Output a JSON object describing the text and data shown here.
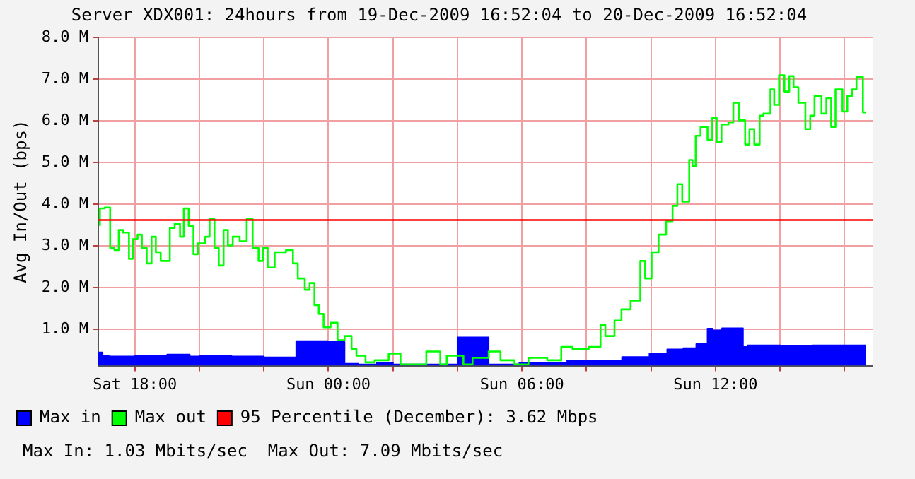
{
  "chart_data": {
    "type": "step",
    "title": "Server XDX001: 24hours from 19-Dec-2009 16:52:04 to 20-Dec-2009 16:52:04",
    "ylabel": "Avg In/Out (bps)",
    "xlim": [
      "2009-12-19T16:52",
      "2009-12-20T16:52"
    ],
    "xticks": [
      {
        "value": "2009-12-19T18:00",
        "label": "Sat 18:00"
      },
      {
        "value": "2009-12-19T20:00",
        "label": null
      },
      {
        "value": "2009-12-19T22:00",
        "label": null
      },
      {
        "value": "2009-12-20T00:00",
        "label": "Sun 00:00"
      },
      {
        "value": "2009-12-20T02:00",
        "label": null
      },
      {
        "value": "2009-12-20T04:00",
        "label": null
      },
      {
        "value": "2009-12-20T06:00",
        "label": "Sun 06:00"
      },
      {
        "value": "2009-12-20T08:00",
        "label": null
      },
      {
        "value": "2009-12-20T10:00",
        "label": null
      },
      {
        "value": "2009-12-20T12:00",
        "label": "Sun 12:00"
      },
      {
        "value": "2009-12-20T14:00",
        "label": null
      },
      {
        "value": "2009-12-20T16:00",
        "label": null
      }
    ],
    "ylim": [
      0.13,
      8.0
    ],
    "yticks": [
      {
        "value": 1,
        "label": "1.0 M"
      },
      {
        "value": 2,
        "label": "2.0 M"
      },
      {
        "value": 3,
        "label": "3.0 M"
      },
      {
        "value": 4,
        "label": "4.0 M"
      },
      {
        "value": 5,
        "label": "5.0 M"
      },
      {
        "value": 6,
        "label": "6.0 M"
      },
      {
        "value": 7,
        "label": "7.0 M"
      },
      {
        "value": 8,
        "label": "8.0 M"
      }
    ],
    "grid": true,
    "legend": "bottom",
    "marker": "none",
    "annotations": [
      "Max In: 1.03 Mbits/sec  Max Out: 7.09 Mbits/sec"
    ],
    "series": [
      {
        "name": "Max in",
        "type": "area",
        "color": "#0000ff",
        "x": [
          "2009-12-19T16:52",
          "2009-12-19T17:00",
          "2009-12-19T17:12",
          "2009-12-19T18:00",
          "2009-12-19T19:00",
          "2009-12-19T19:42",
          "2009-12-19T20:00",
          "2009-12-19T21:00",
          "2009-12-19T22:00",
          "2009-12-19T23:00",
          "2009-12-19T23:59",
          "2009-12-20T00:30",
          "2009-12-20T00:56",
          "2009-12-20T01:30",
          "2009-12-20T02:00",
          "2009-12-20T03:00",
          "2009-12-20T04:00",
          "2009-12-20T04:58",
          "2009-12-20T05:55",
          "2009-12-20T07:24",
          "2009-12-20T09:06",
          "2009-12-20T09:57",
          "2009-12-20T10:30",
          "2009-12-20T11:00",
          "2009-12-20T11:24",
          "2009-12-20T11:45",
          "2009-12-20T11:54",
          "2009-12-20T12:12",
          "2009-12-20T12:51",
          "2009-12-20T13:00",
          "2009-12-20T14:00",
          "2009-12-20T15:00",
          "2009-12-20T16:00",
          "2009-12-20T16:40"
        ],
        "values": [
          0.36,
          0.45,
          0.36,
          0.35,
          0.36,
          0.4,
          0.35,
          0.36,
          0.35,
          0.33,
          0.72,
          0.7,
          0.18,
          0.16,
          0.2,
          0.16,
          0.16,
          0.81,
          0.16,
          0.21,
          0.26,
          0.34,
          0.42,
          0.52,
          0.55,
          0.65,
          1.02,
          0.98,
          1.03,
          0.58,
          0.62,
          0.6,
          0.62,
          0.62
        ]
      },
      {
        "name": "Max out",
        "color": "#00ff00",
        "x": [
          "2009-12-19T16:55",
          "2009-12-19T17:04",
          "2009-12-19T17:14",
          "2009-12-19T17:22",
          "2009-12-19T17:30",
          "2009-12-19T17:38",
          "2009-12-19T17:49",
          "2009-12-19T17:56",
          "2009-12-19T18:05",
          "2009-12-19T18:13",
          "2009-12-19T18:22",
          "2009-12-19T18:31",
          "2009-12-19T18:39",
          "2009-12-19T18:48",
          "2009-12-19T19:05",
          "2009-12-19T19:14",
          "2009-12-19T19:24",
          "2009-12-19T19:31",
          "2009-12-19T19:40",
          "2009-12-19T19:49",
          "2009-12-19T19:57",
          "2009-12-19T20:11",
          "2009-12-19T20:19",
          "2009-12-19T20:28",
          "2009-12-19T20:36",
          "2009-12-19T20:45",
          "2009-12-19T20:53",
          "2009-12-19T21:02",
          "2009-12-19T21:15",
          "2009-12-19T21:28",
          "2009-12-19T21:39",
          "2009-12-19T21:50",
          "2009-12-19T21:58",
          "2009-12-19T22:07",
          "2009-12-19T22:20",
          "2009-12-19T22:28",
          "2009-12-19T22:41",
          "2009-12-19T22:54",
          "2009-12-19T23:03",
          "2009-12-19T23:16",
          "2009-12-19T23:25",
          "2009-12-19T23:34",
          "2009-12-19T23:42",
          "2009-12-19T23:51",
          "2009-12-20T00:04",
          "2009-12-20T00:17",
          "2009-12-20T00:30",
          "2009-12-20T00:43",
          "2009-12-20T00:52",
          "2009-12-20T01:09",
          "2009-12-20T01:26",
          "2009-12-20T01:52",
          "2009-12-20T02:14",
          "2009-12-20T02:27",
          "2009-12-20T03:02",
          "2009-12-20T03:28",
          "2009-12-20T03:40",
          "2009-12-20T04:11",
          "2009-12-20T04:28",
          "2009-12-20T04:58",
          "2009-12-20T05:20",
          "2009-12-20T05:46",
          "2009-12-20T06:12",
          "2009-12-20T06:47",
          "2009-12-20T07:13",
          "2009-12-20T07:34",
          "2009-12-20T08:04",
          "2009-12-20T08:26",
          "2009-12-20T08:35",
          "2009-12-20T08:52",
          "2009-12-20T09:05",
          "2009-12-20T09:22",
          "2009-12-20T09:40",
          "2009-12-20T09:49",
          "2009-12-20T10:01",
          "2009-12-20T10:14",
          "2009-12-20T10:28",
          "2009-12-20T10:40",
          "2009-12-20T10:49",
          "2009-12-20T10:58",
          "2009-12-20T11:11",
          "2009-12-20T11:17",
          "2009-12-20T11:23",
          "2009-12-20T11:32",
          "2009-12-20T11:45",
          "2009-12-20T11:54",
          "2009-12-20T12:02",
          "2009-12-20T12:11",
          "2009-12-20T12:24",
          "2009-12-20T12:33",
          "2009-12-20T12:43",
          "2009-12-20T12:55",
          "2009-12-20T13:03",
          "2009-12-20T13:12",
          "2009-12-20T13:22",
          "2009-12-20T13:29",
          "2009-12-20T13:42",
          "2009-12-20T13:49",
          "2009-12-20T13:58",
          "2009-12-20T14:08",
          "2009-12-20T14:17",
          "2009-12-20T14:25",
          "2009-12-20T14:34",
          "2009-12-20T14:47",
          "2009-12-20T14:56",
          "2009-12-20T15:04",
          "2009-12-20T15:17",
          "2009-12-20T15:26",
          "2009-12-20T15:35",
          "2009-12-20T15:43",
          "2009-12-20T15:56",
          "2009-12-20T16:05",
          "2009-12-20T16:14",
          "2009-12-20T16:22",
          "2009-12-20T16:34",
          "2009-12-20T16:40"
        ],
        "values": [
          3.48,
          3.9,
          3.92,
          2.95,
          2.9,
          3.38,
          3.32,
          2.69,
          3.16,
          3.27,
          2.95,
          2.58,
          3.22,
          2.85,
          2.64,
          3.43,
          3.53,
          3.22,
          3.9,
          3.48,
          2.8,
          3.06,
          3.22,
          3.64,
          2.95,
          2.53,
          3.38,
          3.01,
          3.22,
          3.11,
          3.64,
          2.95,
          2.64,
          2.95,
          2.48,
          2.85,
          2.85,
          2.9,
          2.58,
          2.22,
          1.95,
          2.11,
          1.58,
          1.37,
          1.05,
          1.16,
          0.74,
          0.84,
          0.53,
          0.37,
          0.21,
          0.26,
          0.42,
          0.16,
          0.16,
          0.47,
          0.16,
          0.37,
          0.16,
          0.32,
          0.47,
          0.26,
          0.16,
          0.32,
          0.26,
          0.58,
          0.53,
          0.58,
          1.11,
          0.84,
          1.21,
          1.48,
          1.69,
          2.64,
          2.22,
          2.85,
          3.27,
          3.59,
          3.96,
          4.48,
          4.06,
          5.06,
          4.91,
          5.64,
          5.85,
          5.54,
          6.07,
          5.49,
          5.91,
          5.96,
          6.43,
          6.01,
          5.43,
          5.8,
          5.43,
          6.12,
          6.17,
          6.75,
          6.38,
          7.09,
          6.7,
          7.07,
          6.8,
          6.43,
          5.8,
          6.12,
          6.59,
          6.17,
          6.54,
          5.85,
          6.75,
          6.22,
          6.59,
          6.75,
          7.05,
          6.2
        ]
      },
      {
        "name": "95 Percentile (December): 3.62 Mbps",
        "type": "line",
        "color": "#ff0000",
        "x": [
          "2009-12-19T16:52",
          "2009-12-20T16:52"
        ],
        "values": [
          3.62,
          3.62
        ]
      }
    ]
  }
}
